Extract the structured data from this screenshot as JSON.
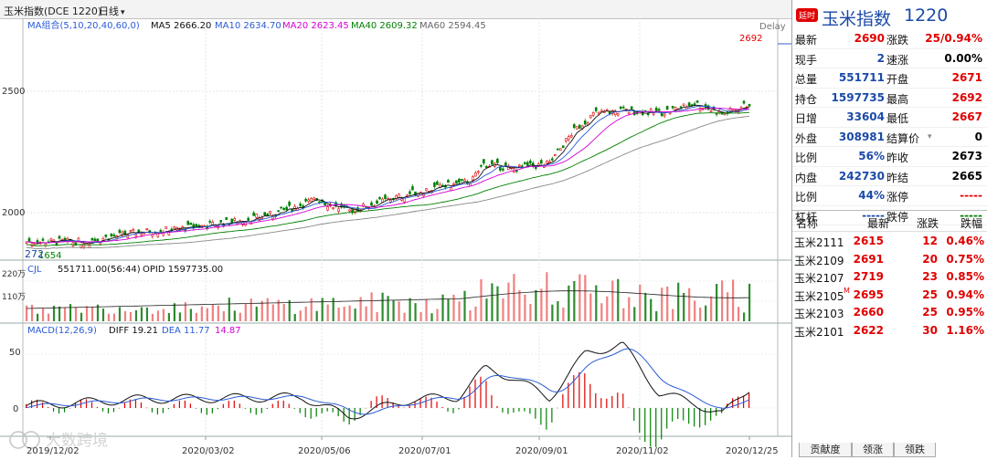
{
  "title_bar": {
    "symbol_name": "玉米指数(DCE 1220)",
    "period": "日线",
    "period_caret": "▾"
  },
  "ma_legend": {
    "group": "MA组合(5,10,20,40,60,0)",
    "ma5": "MA5 2666.20",
    "ma10": "MA10 2634.70",
    "ma20": "MA20 2623.45",
    "ma40": "MA40 2609.32",
    "ma60": "MA60 2594.45"
  },
  "delay_label": "Delay",
  "price_axis": {
    "t2500": "2500",
    "t2000": "2000"
  },
  "price_marks": {
    "high": "2692",
    "low_left": "272",
    "low_right": "1654"
  },
  "volume_legend": {
    "label": "CJL",
    "value": "551711.00(56:44)",
    "opid": "OPID 1597735.00"
  },
  "volume_axis": {
    "t220": "220万",
    "t110": "110万"
  },
  "macd_legend": {
    "label": "MACD(12,26,9)",
    "diff": "DIFF 19.21",
    "dea": "DEA 11.77",
    "macd": "14.87"
  },
  "macd_axis": {
    "t50": "50",
    "t0": "0"
  },
  "watermark": "大数跨境",
  "date_axis": [
    "2019/12/02",
    "2020/03/02",
    "2020/05/06",
    "2020/07/01",
    "2020/09/01",
    "2020/11/02",
    "2020/12/25"
  ],
  "quote": {
    "badge": "延时",
    "name": "玉米指数",
    "code": "1220",
    "rows": [
      {
        "l1": "最新",
        "v1": "2690",
        "c1": "red",
        "l2": "涨跌",
        "v2": "25/0.94%",
        "c2": "red"
      },
      {
        "l1": "现手",
        "v1": "2",
        "c1": "blue",
        "l2": "速涨",
        "v2": "0.00%",
        "c2": "blk"
      },
      {
        "l1": "总量",
        "v1": "551711",
        "c1": "blue",
        "l2": "开盘",
        "v2": "2671",
        "c2": "red"
      },
      {
        "l1": "持仓",
        "v1": "1597735",
        "c1": "blue",
        "l2": "最高",
        "v2": "2692",
        "c2": "red"
      },
      {
        "l1": "日增",
        "v1": "33604",
        "c1": "blue",
        "l2": "最低",
        "v2": "2667",
        "c2": "red"
      },
      {
        "l1": "外盘",
        "v1": "308981",
        "c1": "blue",
        "l2": "结算价",
        "v2": "0",
        "c2": "blk"
      },
      {
        "l1": "比例",
        "v1": "56%",
        "c1": "blue",
        "l2": "昨收",
        "v2": "2673",
        "c2": "blk"
      },
      {
        "l1": "内盘",
        "v1": "242730",
        "c1": "blue",
        "l2": "昨结",
        "v2": "2665",
        "c2": "blk"
      },
      {
        "l1": "比例",
        "v1": "44%",
        "c1": "blue",
        "l2": "涨停",
        "v2": "-----",
        "c2": "red"
      },
      {
        "l1": "杠杆",
        "v1": "-----",
        "c1": "blue",
        "l2": "跌停",
        "v2": "-----",
        "c2": "grn"
      }
    ],
    "settle_caret": "▾"
  },
  "contracts": {
    "headers": {
      "name": "名称",
      "last": "最新",
      "change": "涨跌",
      "pct": "跌幅"
    },
    "rows": [
      {
        "name": "玉米2111",
        "mark": "",
        "last": "2615",
        "change": "12",
        "pct": "0.46%"
      },
      {
        "name": "玉米2109",
        "mark": "",
        "last": "2691",
        "change": "20",
        "pct": "0.75%"
      },
      {
        "name": "玉米2107",
        "mark": "",
        "last": "2719",
        "change": "23",
        "pct": "0.85%"
      },
      {
        "name": "玉米2105",
        "mark": "M",
        "last": "2695",
        "change": "25",
        "pct": "0.94%"
      },
      {
        "name": "玉米2103",
        "mark": "",
        "last": "2660",
        "change": "25",
        "pct": "0.95%"
      },
      {
        "name": "玉米2101",
        "mark": "",
        "last": "2622",
        "change": "30",
        "pct": "1.16%"
      }
    ]
  },
  "tabs": [
    "贡献度",
    "领涨",
    "领跌"
  ],
  "colors": {
    "up": "#e00000",
    "down": "#008000",
    "ma5": "#111111",
    "ma10": "#2a5bd7",
    "ma20": "#d600d6",
    "ma40": "#008000",
    "ma60": "#888888",
    "value_blue": "#1b4aa8"
  }
}
